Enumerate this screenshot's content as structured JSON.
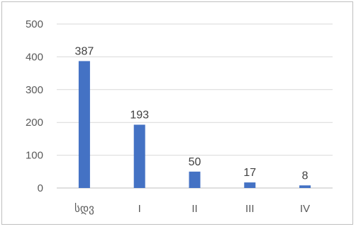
{
  "chart_data": {
    "type": "bar",
    "categories": [
      "სდვ",
      "I",
      "II",
      "III",
      "IV"
    ],
    "values": [
      387,
      193,
      50,
      17,
      8
    ],
    "ylim": [
      0,
      500
    ],
    "yticks": [
      0,
      100,
      200,
      300,
      400,
      500
    ],
    "grid": true,
    "legend": "none",
    "data_labels": true,
    "bar_color": "#4472c4",
    "grid_color": "#d9d9d9",
    "text_color": "#595959",
    "label_color": "#404040"
  }
}
